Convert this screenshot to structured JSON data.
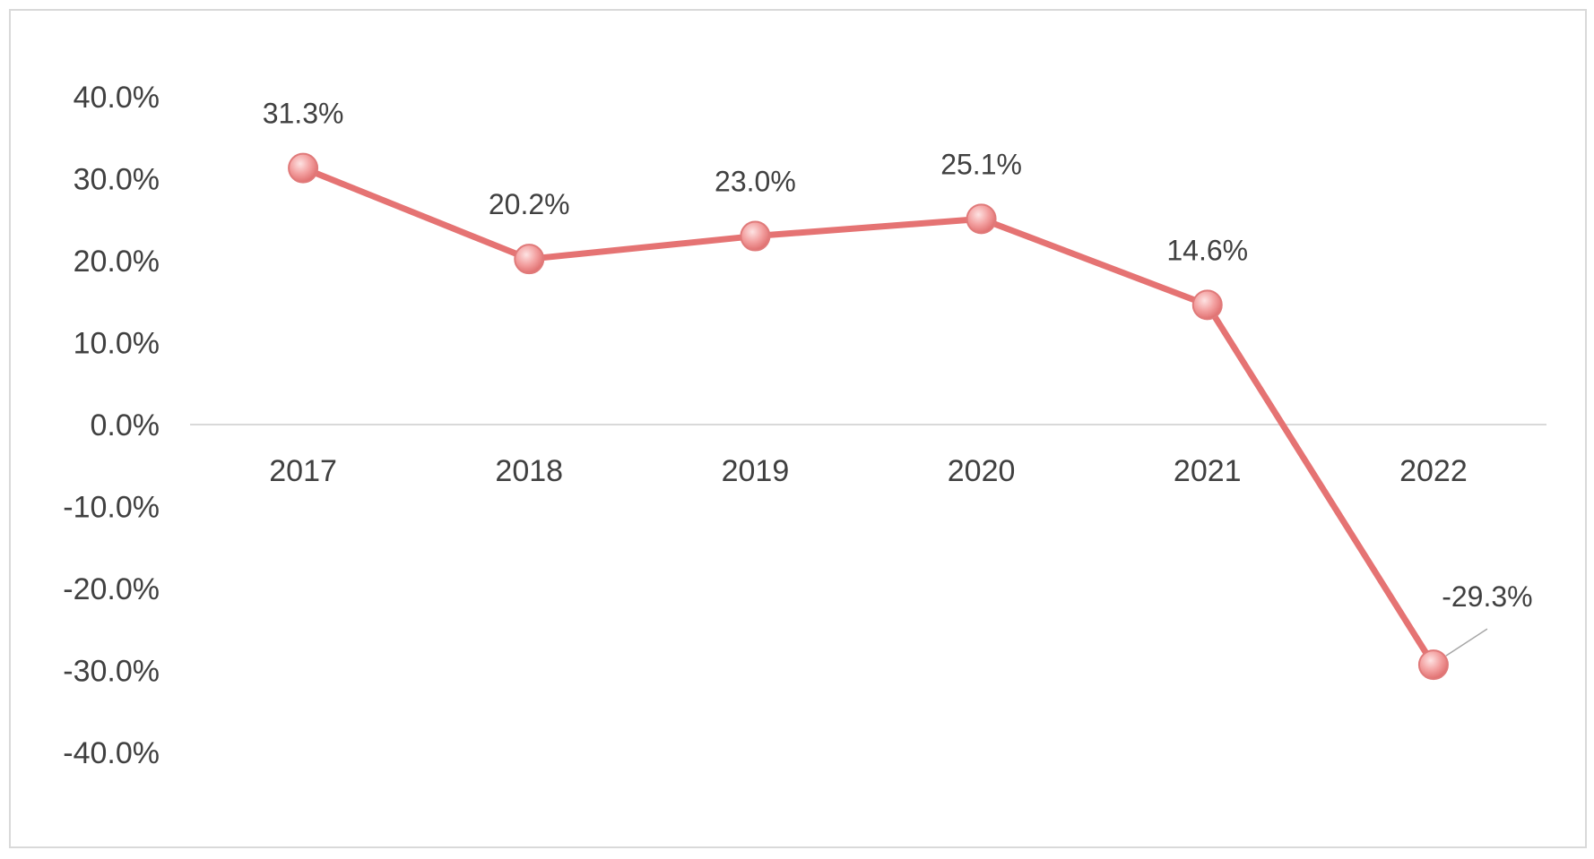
{
  "chart_data": {
    "type": "line",
    "x": [
      "2017",
      "2018",
      "2019",
      "2020",
      "2021",
      "2022"
    ],
    "series": [
      {
        "values": [
          31.3,
          20.2,
          23.0,
          25.1,
          14.6,
          -29.3
        ],
        "labels": [
          "31.3%",
          "20.2%",
          "23.0%",
          "25.1%",
          "14.6%",
          "-29.3%"
        ],
        "color": "#e57373"
      }
    ],
    "y_ticks": [
      40,
      30,
      20,
      10,
      0,
      -10,
      -20,
      -30,
      -40
    ],
    "y_tick_labels": [
      "40.0%",
      "30.0%",
      "20.0%",
      "10.0%",
      "0.0%",
      "-10.0%",
      "-20.0%",
      "-30.0%",
      "-40.0%"
    ],
    "ylim": [
      -40,
      40
    ],
    "title": "",
    "xlabel": "",
    "ylabel": "",
    "grid": false,
    "legend": "none",
    "zero_line_color": "#d9d9d9",
    "marker_color": "#f08a8a",
    "label_text_color": "#404040"
  }
}
